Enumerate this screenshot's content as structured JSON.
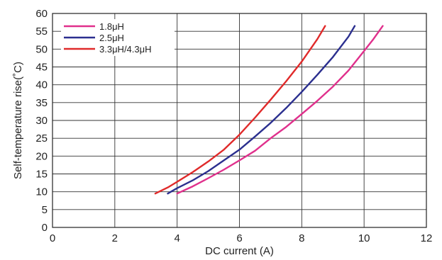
{
  "chart_data": {
    "type": "line",
    "xlabel": "DC current (A)",
    "ylabel": "Self-temperature rise(˚C)",
    "xlim": [
      0,
      12
    ],
    "ylim": [
      0,
      60
    ],
    "xticks": [
      0,
      2,
      4,
      6,
      8,
      10,
      12
    ],
    "yticks": [
      0,
      5,
      10,
      15,
      20,
      25,
      30,
      35,
      40,
      45,
      50,
      55,
      60
    ],
    "grid": true,
    "legend_position": "top-left",
    "series": [
      {
        "name": "1.8μH",
        "color": "#e0308c",
        "points": [
          [
            4.0,
            9.5
          ],
          [
            4.5,
            11.5
          ],
          [
            5.0,
            13.8
          ],
          [
            5.5,
            16.2
          ],
          [
            6.0,
            18.8
          ],
          [
            6.5,
            21.5
          ],
          [
            7.0,
            25.0
          ],
          [
            7.5,
            28.2
          ],
          [
            8.0,
            31.8
          ],
          [
            8.5,
            35.5
          ],
          [
            9.0,
            39.5
          ],
          [
            9.5,
            44.0
          ],
          [
            10.0,
            49.5
          ],
          [
            10.3,
            52.8
          ],
          [
            10.6,
            56.5
          ]
        ]
      },
      {
        "name": "2.5μH",
        "color": "#2b2f8f",
        "points": [
          [
            3.7,
            9.5
          ],
          [
            4.0,
            11.0
          ],
          [
            4.5,
            13.2
          ],
          [
            5.0,
            15.8
          ],
          [
            5.5,
            18.8
          ],
          [
            6.0,
            21.8
          ],
          [
            6.5,
            25.5
          ],
          [
            7.0,
            29.3
          ],
          [
            7.5,
            33.5
          ],
          [
            8.0,
            38.0
          ],
          [
            8.5,
            42.8
          ],
          [
            9.0,
            47.8
          ],
          [
            9.5,
            53.5
          ],
          [
            9.7,
            56.5
          ]
        ]
      },
      {
        "name": "3.3μH/4.3μH",
        "color": "#e02a2a",
        "points": [
          [
            3.3,
            9.5
          ],
          [
            3.7,
            11.2
          ],
          [
            4.0,
            12.8
          ],
          [
            4.5,
            15.5
          ],
          [
            5.0,
            18.5
          ],
          [
            5.5,
            21.8
          ],
          [
            6.0,
            26.0
          ],
          [
            6.5,
            30.8
          ],
          [
            7.0,
            35.8
          ],
          [
            7.5,
            41.0
          ],
          [
            8.0,
            46.5
          ],
          [
            8.5,
            52.8
          ],
          [
            8.75,
            56.5
          ]
        ]
      }
    ]
  }
}
